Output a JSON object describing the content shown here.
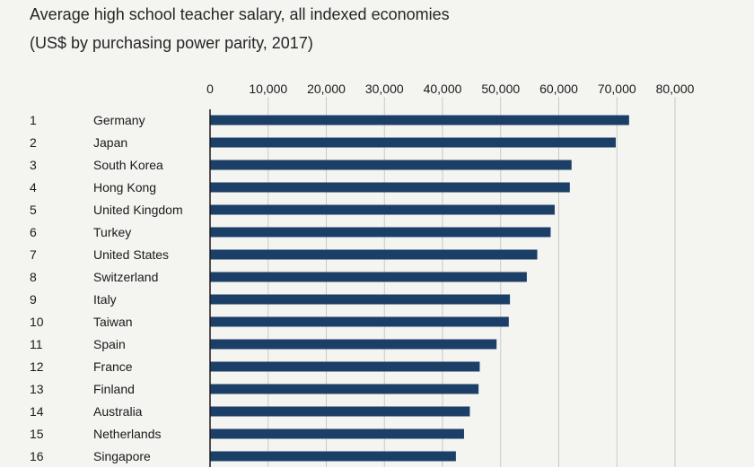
{
  "chart_data": {
    "type": "bar",
    "orientation": "horizontal",
    "title": "Average high school teacher salary, all indexed economies",
    "subtitle": "(US$ by purchasing power parity, 2017)",
    "xlim": [
      0,
      80000
    ],
    "xticks": [
      0,
      10000,
      20000,
      30000,
      40000,
      50000,
      60000,
      70000,
      80000
    ],
    "xtick_labels": [
      "0",
      "10,000",
      "20,000",
      "30,000",
      "40,000",
      "50,000",
      "60,000",
      "70,000",
      "80,000"
    ],
    "grid": true,
    "bar_color": "#1b3f66",
    "ranks": [
      "1",
      "2",
      "3",
      "4",
      "5",
      "6",
      "7",
      "8",
      "9",
      "10",
      "11",
      "12",
      "13",
      "14",
      "15",
      "16"
    ],
    "categories": [
      "Germany",
      "Japan",
      "South Korea",
      "Hong Kong",
      "United Kingdom",
      "Turkey",
      "United States",
      "Switzerland",
      "Italy",
      "Taiwan",
      "Spain",
      "France",
      "Finland",
      "Australia",
      "Netherlands",
      "Singapore"
    ],
    "values": [
      72100,
      69800,
      62200,
      61900,
      59300,
      58600,
      56300,
      54500,
      51600,
      51400,
      49300,
      46400,
      46200,
      44700,
      43700,
      42300
    ]
  }
}
